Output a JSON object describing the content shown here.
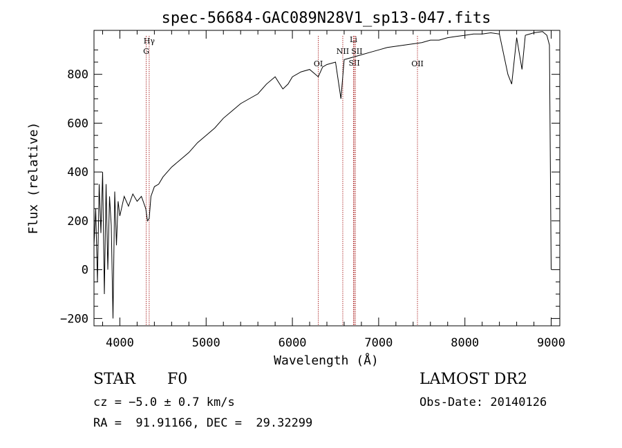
{
  "chart_data": {
    "type": "line",
    "title": "spec-56684-GAC089N28V1_sp13-047.fits",
    "xlabel": "Wavelength (Å)",
    "ylabel": "Flux (relative)",
    "xlim": [
      3700,
      9100
    ],
    "ylim": [
      -230,
      980
    ],
    "xticks": [
      4000,
      5000,
      6000,
      7000,
      8000,
      9000
    ],
    "yticks": [
      -200,
      0,
      200,
      400,
      600,
      800
    ],
    "xtick_labels": [
      "4000",
      "5000",
      "6000",
      "7000",
      "8000",
      "9000"
    ],
    "ytick_labels": [
      "−200",
      "0",
      "200",
      "400",
      "600",
      "800"
    ],
    "grid": false,
    "line_color": "#000000",
    "marker_color": "#b03030",
    "lines": [
      {
        "label": "Hγ",
        "wavelength": 4340
      },
      {
        "label": "G",
        "wavelength": 4305
      },
      {
        "label": "OI",
        "wavelength": 6300
      },
      {
        "label": "NII",
        "wavelength": 6584
      },
      {
        "label": "Li",
        "wavelength": 6708
      },
      {
        "label": "SII",
        "wavelength": 6717
      },
      {
        "label": "SII",
        "wavelength": 6731
      },
      {
        "label": "OII",
        "wavelength": 7450
      }
    ],
    "series": [
      {
        "x": [
          3700,
          3720,
          3740,
          3760,
          3780,
          3800,
          3820,
          3840,
          3860,
          3880,
          3900,
          3920,
          3940,
          3960,
          3980,
          4000,
          4050,
          4100,
          4150,
          4200,
          4250,
          4300,
          4320,
          4340,
          4360,
          4400,
          4450,
          4500,
          4600,
          4700,
          4800,
          4900,
          5000,
          5100,
          5200,
          5300,
          5400,
          5500,
          5600,
          5700,
          5800,
          5890,
          5950,
          6000,
          6100,
          6200,
          6300,
          6350,
          6400,
          6500,
          6563,
          6600,
          6700,
          6800,
          6900,
          7000,
          7100,
          7200,
          7300,
          7400,
          7500,
          7600,
          7700,
          7800,
          7900,
          8000,
          8100,
          8200,
          8300,
          8400,
          8498,
          8542,
          8600,
          8662,
          8700,
          8800,
          8900,
          8950,
          8980,
          9000
        ],
        "y": [
          100,
          250,
          -50,
          350,
          150,
          400,
          -100,
          350,
          0,
          300,
          180,
          -200,
          320,
          100,
          280,
          220,
          300,
          260,
          310,
          280,
          300,
          250,
          200,
          210,
          300,
          340,
          350,
          380,
          420,
          450,
          480,
          520,
          550,
          580,
          620,
          650,
          680,
          700,
          720,
          760,
          790,
          740,
          760,
          790,
          810,
          820,
          790,
          830,
          840,
          850,
          700,
          860,
          870,
          880,
          890,
          900,
          910,
          915,
          920,
          925,
          930,
          940,
          940,
          950,
          955,
          960,
          965,
          965,
          970,
          965,
          800,
          760,
          950,
          820,
          960,
          970,
          975,
          960,
          920,
          0
        ]
      }
    ]
  },
  "info": {
    "object_class": "STAR",
    "subclass": "F0",
    "survey": "LAMOST DR2",
    "redshift": "cz = −5.0 ± 0.7 km/s",
    "obs_date": "Obs-Date: 20140126",
    "coords": "RA =  91.91166, DEC =  29.32299"
  }
}
